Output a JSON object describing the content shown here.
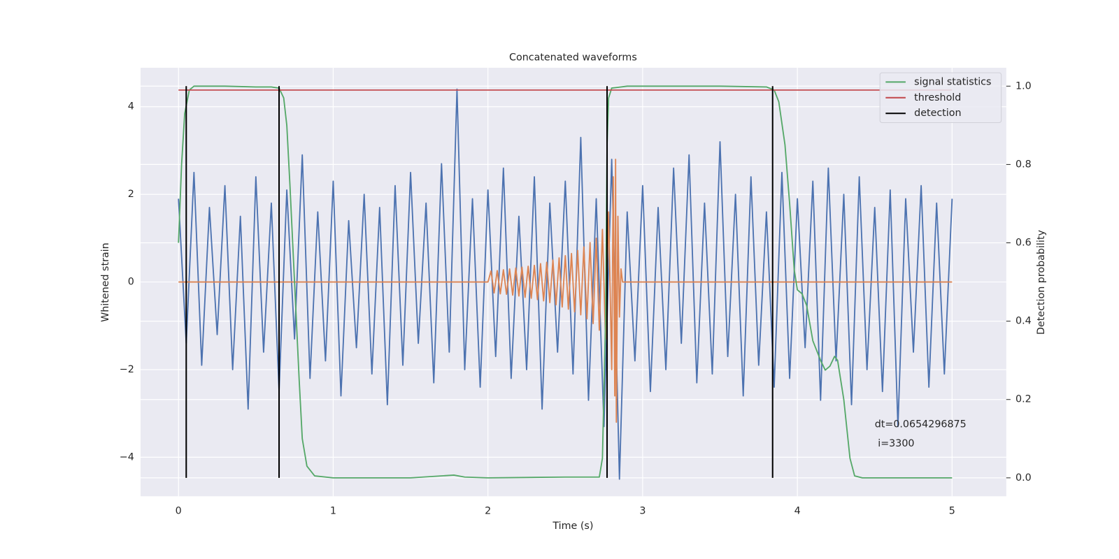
{
  "chart_data": {
    "type": "line",
    "title": "Concatenated waveforms",
    "xlabel": "Time (s)",
    "ylabel": "Whitened strain",
    "y2label": "Detection probability",
    "xlim": [
      -0.245,
      5.35
    ],
    "ylim": [
      -4.89,
      4.89
    ],
    "y2lim": [
      -0.047,
      1.047
    ],
    "xticks": [
      0,
      1,
      2,
      3,
      4,
      5
    ],
    "yticks": [
      {
        "value": -4,
        "label": "−4"
      },
      {
        "value": -2,
        "label": "−2"
      },
      0,
      2,
      4
    ],
    "y2ticks": [
      {
        "value": 0,
        "label": "0.0"
      },
      0.2,
      0.4,
      0.6,
      0.8,
      {
        "value": 1,
        "label": "1.0"
      }
    ],
    "grid": true,
    "legend": "upper right",
    "annotation": {
      "x": 4.5,
      "y": -3.45,
      "lines": [
        "dt=0.0654296875",
        " i=3300"
      ]
    },
    "series": [
      {
        "name": "strain",
        "color": "#4c72b0",
        "axis": "y",
        "legend": false,
        "x": [
          0,
          0.05,
          0.1,
          0.15,
          0.2,
          0.25,
          0.3,
          0.35,
          0.4,
          0.45,
          0.5,
          0.55,
          0.6,
          0.65,
          0.7,
          0.75,
          0.8,
          0.85,
          0.9,
          0.95,
          1,
          1.05,
          1.1,
          1.15,
          1.2,
          1.25,
          1.3,
          1.35,
          1.4,
          1.45,
          1.5,
          1.55,
          1.6,
          1.65,
          1.7,
          1.75,
          1.8,
          1.85,
          1.9,
          1.95,
          2,
          2.05,
          2.1,
          2.15,
          2.2,
          2.25,
          2.3,
          2.35,
          2.4,
          2.45,
          2.5,
          2.55,
          2.6,
          2.65,
          2.7,
          2.75,
          2.8,
          2.85,
          2.9,
          2.95,
          3,
          3.05,
          3.1,
          3.15,
          3.2,
          3.25,
          3.3,
          3.35,
          3.4,
          3.45,
          3.5,
          3.55,
          3.6,
          3.65,
          3.7,
          3.75,
          3.8,
          3.85,
          3.9,
          3.95,
          4,
          4.05,
          4.1,
          4.15,
          4.2,
          4.25,
          4.3,
          4.35,
          4.4,
          4.45,
          4.5,
          4.55,
          4.6,
          4.65,
          4.7,
          4.75,
          4.8,
          4.85,
          4.9,
          4.95,
          5
        ],
        "values": [
          1.9,
          -1.4,
          2.5,
          -1.9,
          1.7,
          -1.2,
          2.2,
          -2.0,
          1.5,
          -2.9,
          2.4,
          -1.6,
          1.8,
          -2.5,
          2.1,
          -1.3,
          2.9,
          -2.2,
          1.6,
          -1.8,
          2.3,
          -2.6,
          1.4,
          -1.5,
          2.0,
          -2.1,
          1.7,
          -2.8,
          2.2,
          -1.9,
          2.5,
          -1.4,
          1.8,
          -2.3,
          2.7,
          -1.6,
          4.4,
          -2.0,
          1.9,
          -2.4,
          2.1,
          -1.7,
          2.6,
          -2.2,
          1.5,
          -2.0,
          2.4,
          -2.9,
          1.8,
          -1.6,
          2.3,
          -2.1,
          3.3,
          -2.7,
          1.9,
          -3.3,
          2.8,
          -4.5,
          1.6,
          -1.8,
          2.2,
          -2.5,
          1.7,
          -2.0,
          2.6,
          -1.4,
          2.9,
          -2.3,
          1.8,
          -2.1,
          3.2,
          -1.7,
          2.0,
          -2.6,
          2.4,
          -1.9,
          1.6,
          -2.4,
          2.5,
          -2.2,
          1.9,
          -1.5,
          2.3,
          -2.7,
          2.6,
          -1.8,
          2.0,
          -2.8,
          2.4,
          -2.0,
          1.7,
          -2.5,
          2.1,
          -3.3,
          1.9,
          -1.6,
          2.2,
          -2.4,
          1.8,
          -2.1,
          1.9
        ]
      },
      {
        "name": "waveform",
        "color": "#dd8452",
        "axis": "y",
        "legend": false,
        "x": [
          0,
          2.0,
          2.02,
          2.04,
          2.06,
          2.08,
          2.1,
          2.12,
          2.14,
          2.16,
          2.18,
          2.2,
          2.22,
          2.24,
          2.26,
          2.28,
          2.3,
          2.32,
          2.34,
          2.36,
          2.38,
          2.4,
          2.42,
          2.44,
          2.46,
          2.48,
          2.5,
          2.52,
          2.54,
          2.56,
          2.58,
          2.6,
          2.62,
          2.64,
          2.66,
          2.68,
          2.7,
          2.72,
          2.74,
          2.76,
          2.78,
          2.8,
          2.81,
          2.82,
          2.825,
          2.83,
          2.84,
          2.85,
          2.86,
          2.87,
          5
        ],
        "values": [
          0,
          0,
          0.25,
          -0.25,
          0.26,
          -0.27,
          0.28,
          -0.28,
          0.3,
          -0.3,
          0.32,
          -0.32,
          0.34,
          -0.35,
          0.36,
          -0.37,
          0.38,
          -0.4,
          0.42,
          -0.43,
          0.45,
          -0.47,
          0.5,
          -0.52,
          0.55,
          -0.57,
          0.6,
          -0.62,
          0.65,
          -0.68,
          0.72,
          -0.75,
          0.8,
          -0.84,
          0.9,
          -0.95,
          1.0,
          -1.1,
          1.2,
          -1.3,
          1.6,
          -2.0,
          2.4,
          -2.6,
          2.8,
          -3.2,
          1.5,
          -0.8,
          0.3,
          0,
          0
        ]
      },
      {
        "name": "signal statistics",
        "color": "#55a868",
        "axis": "y2",
        "x": [
          0,
          0.02,
          0.04,
          0.07,
          0.1,
          0.3,
          0.5,
          0.6,
          0.65,
          0.68,
          0.7,
          0.72,
          0.75,
          0.78,
          0.8,
          0.83,
          0.88,
          1.0,
          1.5,
          1.78,
          1.85,
          2.0,
          2.5,
          2.72,
          2.74,
          2.76,
          2.77,
          2.78,
          2.8,
          2.9,
          3.5,
          3.8,
          3.85,
          3.88,
          3.92,
          3.95,
          3.98,
          4.0,
          4.03,
          4.06,
          4.1,
          4.15,
          4.18,
          4.21,
          4.24,
          4.26,
          4.3,
          4.34,
          4.37,
          4.42,
          5.0
        ],
        "values": [
          0.6,
          0.8,
          0.93,
          0.99,
          1.0,
          1.0,
          0.998,
          0.998,
          0.995,
          0.97,
          0.9,
          0.75,
          0.5,
          0.25,
          0.1,
          0.03,
          0.005,
          0,
          0,
          0.007,
          0.002,
          0,
          0.002,
          0.002,
          0.05,
          0.4,
          0.85,
          0.97,
          0.995,
          1.0,
          1.0,
          0.998,
          0.99,
          0.96,
          0.85,
          0.7,
          0.53,
          0.48,
          0.47,
          0.44,
          0.35,
          0.3,
          0.275,
          0.285,
          0.31,
          0.3,
          0.2,
          0.05,
          0.005,
          0,
          0
        ]
      },
      {
        "name": "threshold",
        "color": "#c44e52",
        "axis": "y2",
        "x": [
          0,
          5
        ],
        "values": [
          0.99,
          0.99
        ]
      },
      {
        "name": "detection",
        "color": "#000000",
        "axis": "y2",
        "kind": "vline",
        "x": [
          0.05,
          0.65,
          2.77,
          3.84
        ],
        "span": [
          0,
          1
        ]
      }
    ]
  }
}
